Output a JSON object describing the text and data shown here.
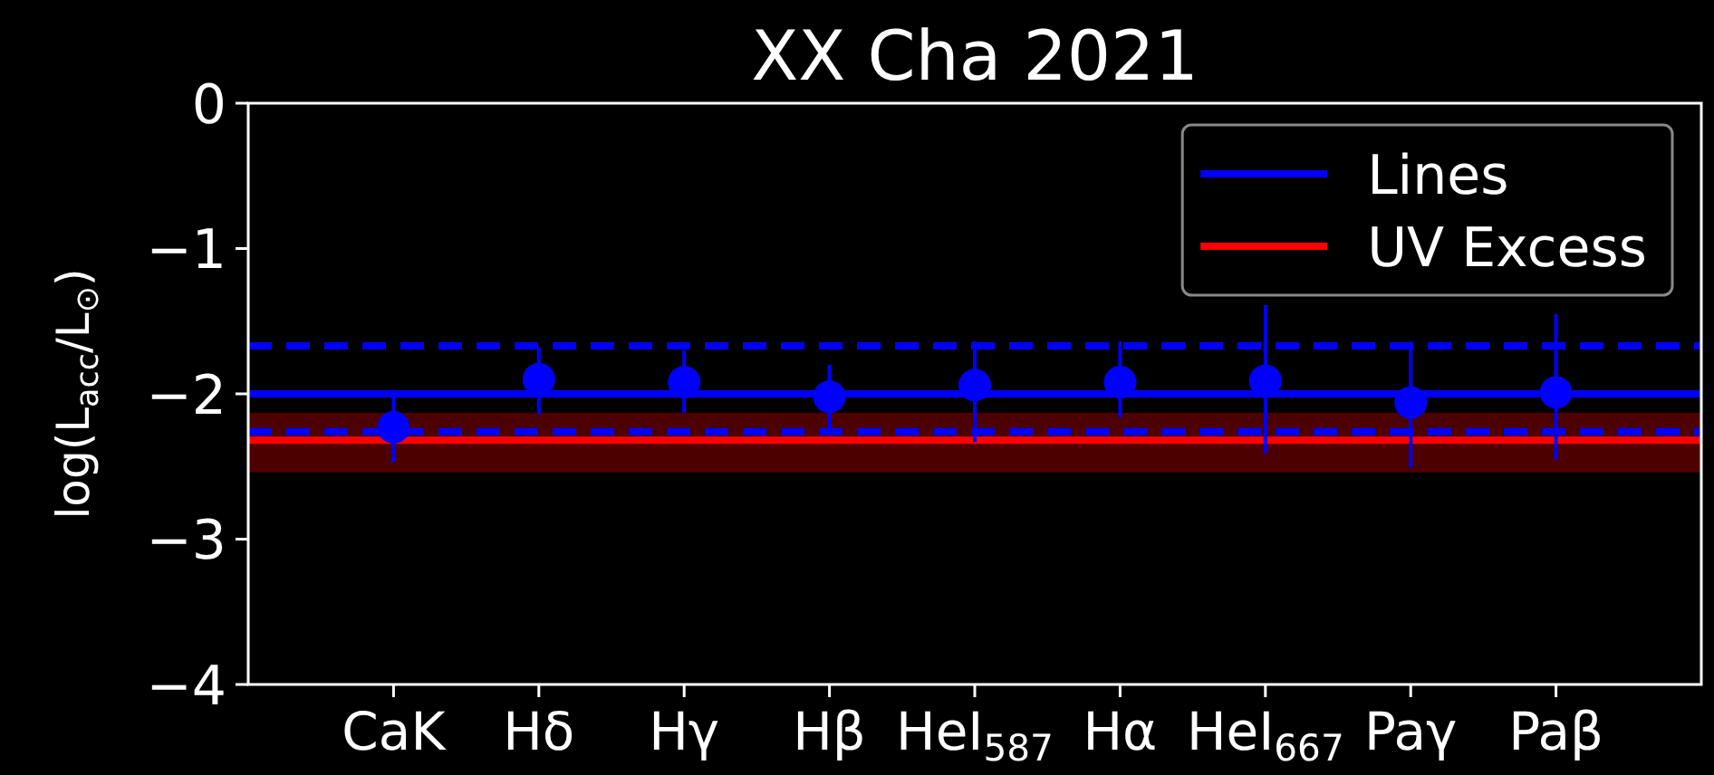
{
  "chart_data": {
    "type": "scatter",
    "title": "XX Cha 2021",
    "ylabel": "log(L$_{acc}$/L$_{⊙}$)",
    "categories": [
      "CaK",
      "Hδ",
      "Hγ",
      "Hβ",
      "HeI$_{587}$",
      "Hα",
      "HeI$_{667}$",
      "Paγ",
      "Paβ"
    ],
    "series": [
      {
        "color": "#0000ff",
        "values": [
          -2.23,
          -1.9,
          -1.92,
          -2.02,
          -1.94,
          -1.92,
          -1.91,
          -2.06,
          -1.99
        ],
        "errors": [
          [
            -2.47,
            -2.01
          ],
          [
            -2.14,
            -1.68
          ],
          [
            -2.13,
            -1.7
          ],
          [
            -2.24,
            -1.8
          ],
          [
            -2.33,
            -1.64
          ],
          [
            -2.16,
            -1.64
          ],
          [
            -2.41,
            -1.39
          ],
          [
            -2.51,
            -1.64
          ],
          [
            -2.45,
            -1.45
          ]
        ]
      }
    ],
    "ylim": [
      -4,
      0
    ],
    "yticks": [
      -4,
      -3,
      -2,
      -1,
      0
    ],
    "bands": [
      {
        "axis": "y",
        "from": -2.54,
        "to": -2.13,
        "color": "#4c0000"
      }
    ],
    "ref_lines": [
      {
        "axis": "y",
        "value": -1.67,
        "color": "#0000ff",
        "line_style": "dashed"
      },
      {
        "axis": "y",
        "value": -2.26,
        "color": "#0000ff",
        "line_style": "dashed"
      },
      {
        "axis": "y",
        "value": -2.0,
        "label": "Lines",
        "color": "#0000ff",
        "line_style": "solid"
      },
      {
        "axis": "y",
        "value": -2.32,
        "label": "UV Excess",
        "color": "#ff0000",
        "line_style": "solid"
      }
    ],
    "legend": "top right",
    "marker": "circle"
  }
}
